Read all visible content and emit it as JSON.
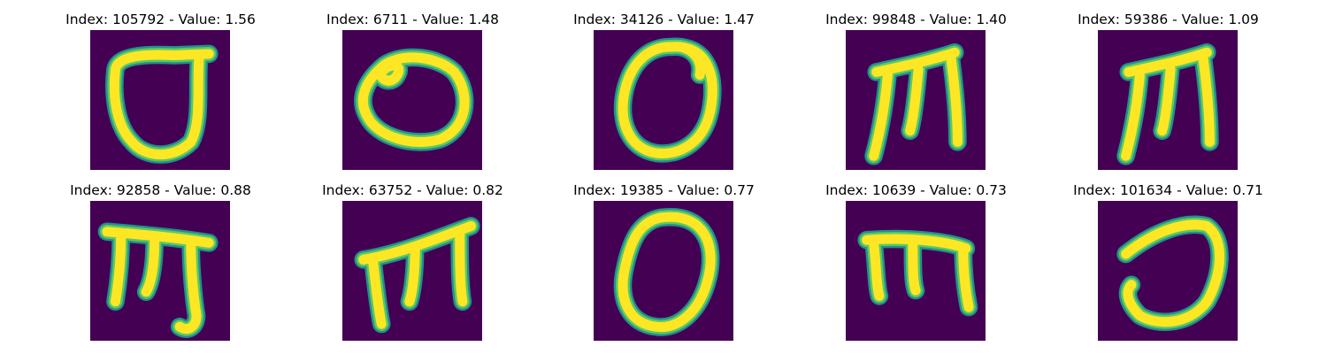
{
  "figure": {
    "panels": [
      {
        "index": "105792",
        "value": "1.56",
        "glyph": "loop-open"
      },
      {
        "index": "6711",
        "value": "1.48",
        "glyph": "loop-wide"
      },
      {
        "index": "34126",
        "value": "1.47",
        "glyph": "loop-round"
      },
      {
        "index": "99848",
        "value": "1.40",
        "glyph": "m-tall"
      },
      {
        "index": "59386",
        "value": "1.09",
        "glyph": "m-tall"
      },
      {
        "index": "92858",
        "value": "0.88",
        "glyph": "m-hook"
      },
      {
        "index": "63752",
        "value": "0.82",
        "glyph": "m-slant"
      },
      {
        "index": "19385",
        "value": "0.77",
        "glyph": "loop-egg"
      },
      {
        "index": "10639",
        "value": "0.73",
        "glyph": "m-wide"
      },
      {
        "index": "101634",
        "value": "0.71",
        "glyph": "loop-c"
      }
    ],
    "colors": {
      "background": "#440154",
      "edge": "#21918c",
      "mid": "#5ec962",
      "stroke": "#fde725"
    }
  }
}
